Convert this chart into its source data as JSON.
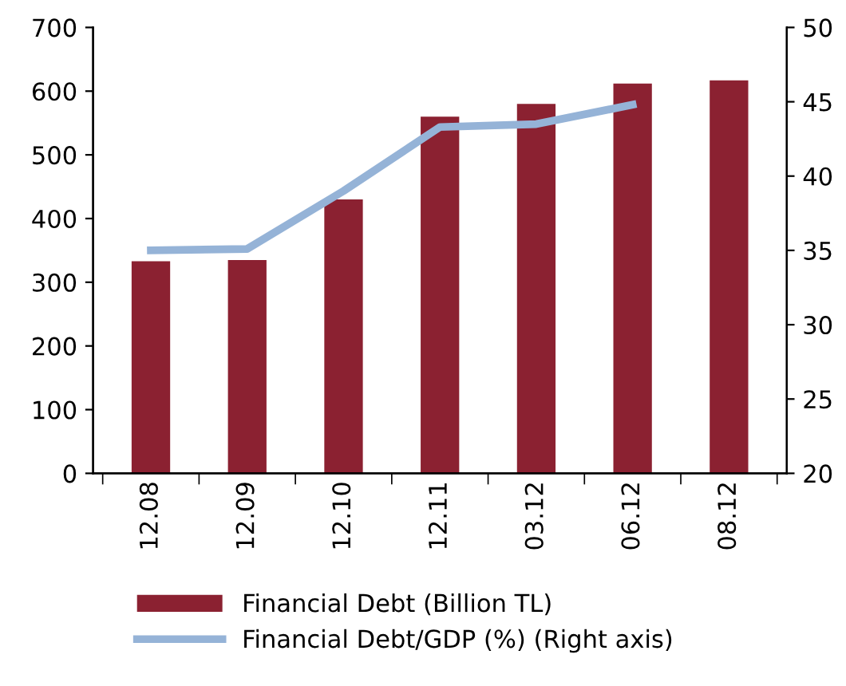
{
  "chart_data": {
    "type": "bar",
    "categories": [
      "12.08",
      "12.09",
      "12.10",
      "12.11",
      "03.12",
      "06.12",
      "08.12"
    ],
    "series": [
      {
        "name": "Financial Debt (Billion TL)",
        "color": "#8b2131",
        "values": [
          333,
          335,
          430,
          560,
          580,
          612,
          617
        ]
      },
      {
        "name": "Financial Debt/GDP (%) (Right axis)",
        "type": "line",
        "axis": "y2",
        "color": "#95b3d7",
        "values": [
          35.0,
          35.1,
          39.0,
          43.3,
          43.5,
          44.8,
          null
        ]
      }
    ],
    "ylim": [
      0,
      700
    ],
    "yticks": [
      0,
      100,
      200,
      300,
      400,
      500,
      600,
      700
    ],
    "y2lim": [
      20,
      50
    ],
    "y2ticks": [
      20,
      25,
      30,
      35,
      40,
      45,
      50
    ],
    "grid": false,
    "legend": "bottom"
  }
}
